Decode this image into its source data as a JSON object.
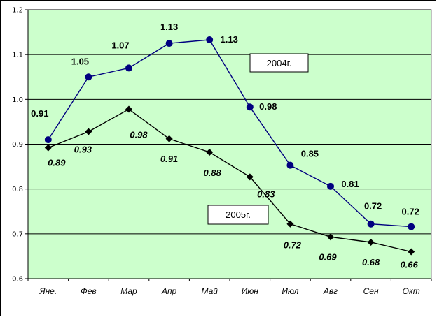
{
  "chart_data": {
    "type": "line",
    "categories": [
      "Яне.",
      "Фев",
      "Мар",
      "Апр",
      "Май",
      "Июн",
      "Июл",
      "Авг",
      "Сен",
      "Окт"
    ],
    "ylim": [
      0.6,
      1.2
    ],
    "yticks": [
      "0.6",
      "0.7",
      "0.8",
      "0.9",
      "1.0",
      "1.1",
      "1.2"
    ],
    "grid": true,
    "series": [
      {
        "name": "2004г.",
        "values": [
          0.91,
          1.05,
          1.07,
          1.125,
          1.133,
          0.983,
          0.853,
          0.806,
          0.722,
          0.716
        ],
        "labels": [
          "0.91",
          "1.05",
          "1.07",
          "1.13",
          "1.13",
          "0.98",
          "0.85",
          "0.81",
          "0.72",
          "0.72"
        ],
        "color": "#000080",
        "marker": "circle"
      },
      {
        "name": "2005г.",
        "values": [
          0.892,
          0.928,
          0.978,
          0.912,
          0.882,
          0.827,
          0.722,
          0.693,
          0.681,
          0.66
        ],
        "labels": [
          "0.89",
          "0.93",
          "0.98",
          "0.91",
          "0.88",
          "0.83",
          "0.72",
          "0.69",
          "0.68",
          "0.66"
        ],
        "color": "#000000",
        "marker": "diamond"
      }
    ]
  },
  "colors": {
    "plot_background": "#ccffcc",
    "gridline": "#000000",
    "series_2004": "#000080",
    "series_2005": "#000000"
  }
}
